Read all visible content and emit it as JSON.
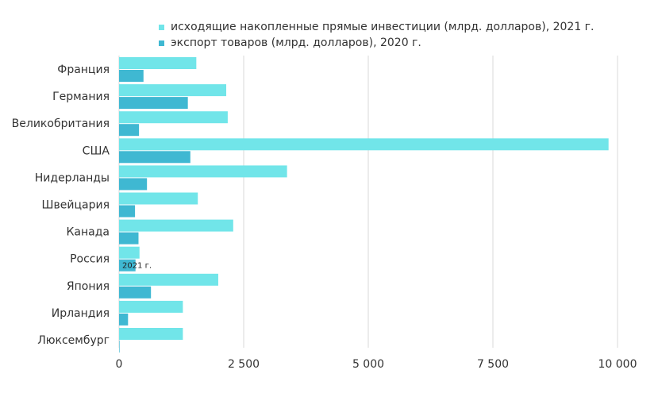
{
  "colors": {
    "series_light": "#71e5e9",
    "series_dark": "#3fb8d2",
    "grid": "#d9d9d9",
    "text": "#333333"
  },
  "chart_data": {
    "type": "bar",
    "orientation": "horizontal",
    "categories": [
      "Франция",
      "Германия",
      "Великобритания",
      "США",
      "Нидерланды",
      "Швейцария",
      "Канада",
      "Россия",
      "Япония",
      "Ирландия",
      "Люксембург"
    ],
    "series": [
      {
        "name": "исходящие накопленные  прямые инвестиции (млрд. долларов), 2021 г.",
        "values": [
          1550,
          2150,
          2180,
          9820,
          3370,
          1580,
          2290,
          410,
          1990,
          1280,
          1280
        ]
      },
      {
        "name": "экспорт товаров (млрд. долларов), 2020 г.",
        "values": [
          490,
          1380,
          400,
          1430,
          560,
          320,
          390,
          330,
          640,
          180,
          10
        ]
      }
    ],
    "xlim": [
      0,
      10000
    ],
    "xticks": [
      0,
      2500,
      5000,
      7500,
      10000
    ],
    "xtick_labels": [
      "0",
      "2 500",
      "5 000",
      "7 500",
      "10 000"
    ],
    "annotations": [
      {
        "category": "Россия",
        "series": 1,
        "text": "2021 г."
      }
    ],
    "grid": "vertical",
    "legend_position": "top"
  }
}
